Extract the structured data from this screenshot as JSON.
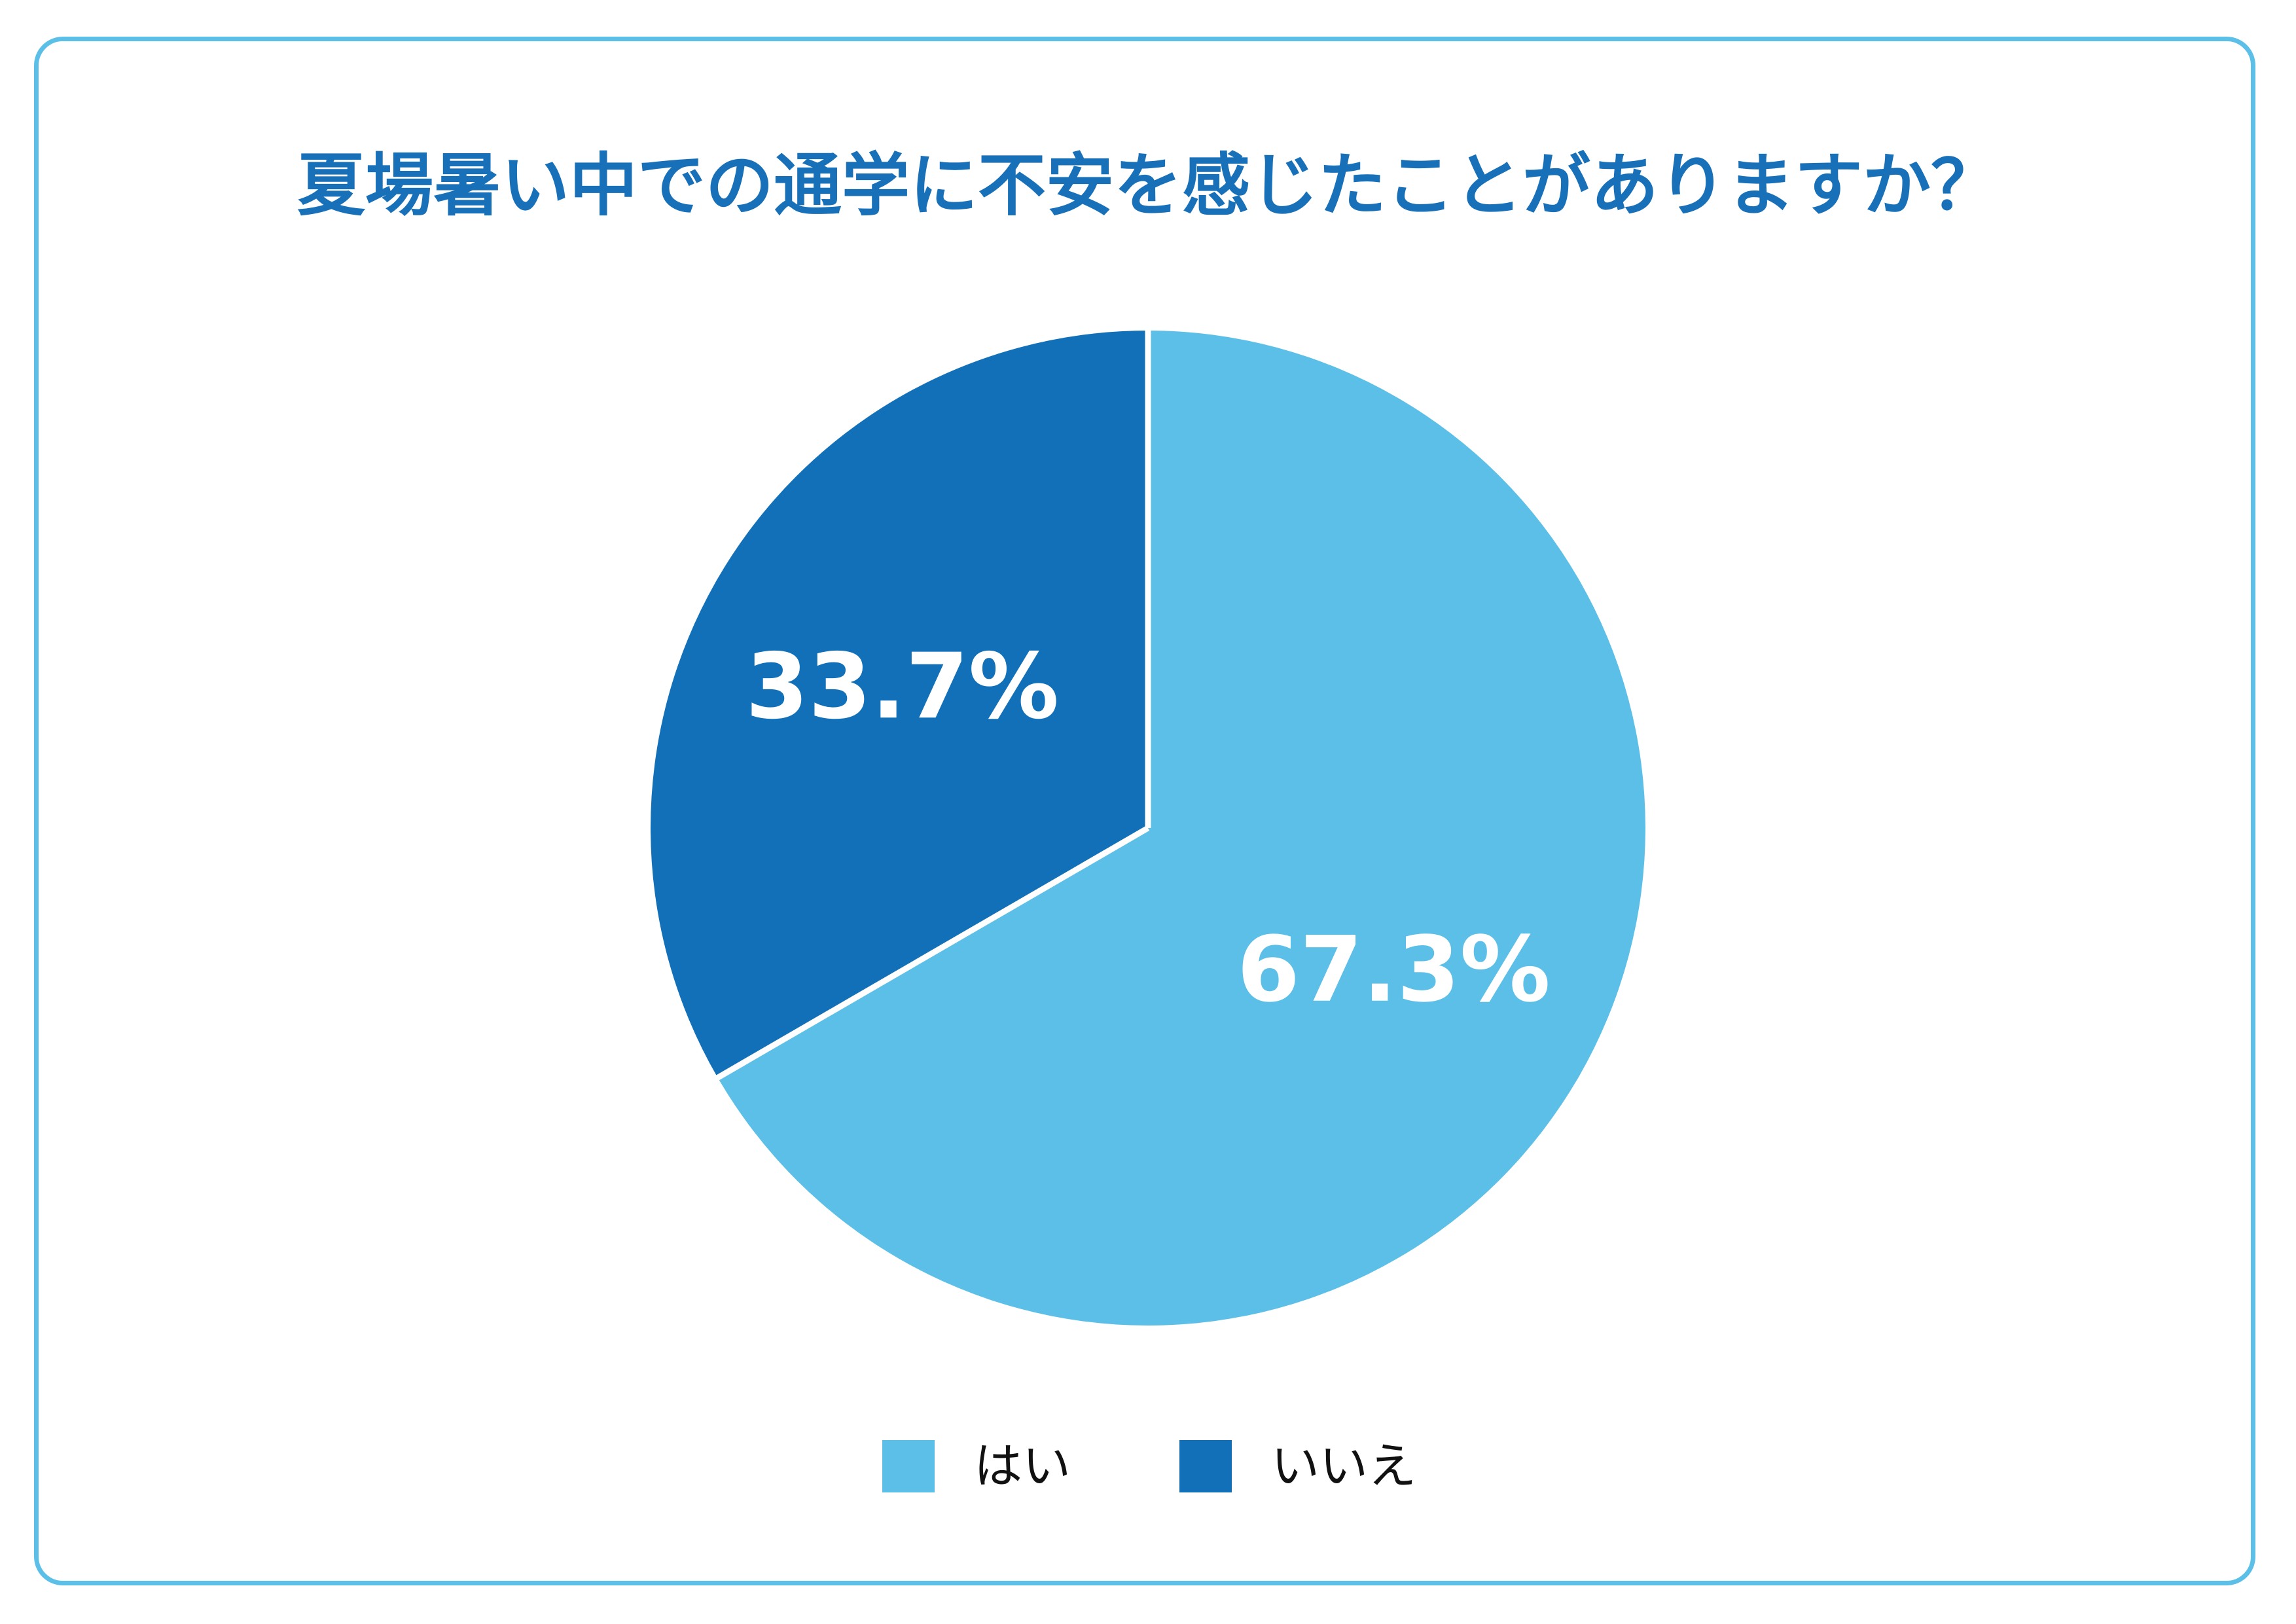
{
  "chart_data": {
    "type": "pie",
    "title": "夏場暑い中での通学に不安を感じたことがありますか？",
    "slices": [
      {
        "name": "はい",
        "value": 67.3,
        "label": "67.3%",
        "color": "#5bbfe8"
      },
      {
        "name": "いいえ",
        "value": 33.7,
        "label": "33.7%",
        "color": "#1170b8"
      }
    ],
    "legend": "bottom",
    "start_angle": "12 o'clock",
    "direction": "clockwise"
  },
  "colors": {
    "frame_border": "#5bbfe8",
    "title": "#1870b8",
    "slice_separator": "#ffffff",
    "data_label": "#ffffff"
  }
}
